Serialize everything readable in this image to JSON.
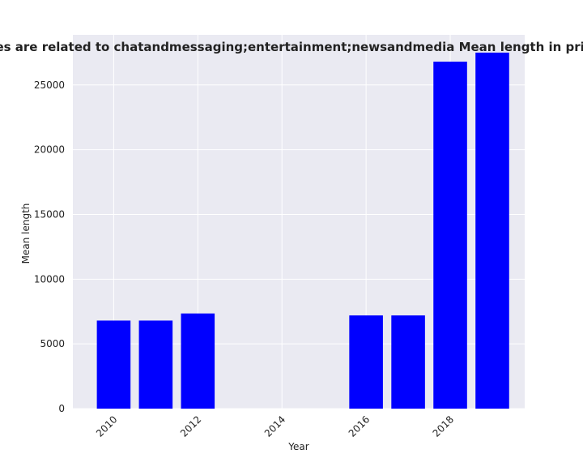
{
  "chart_data": {
    "type": "bar",
    "title": "Categories are related to chatandmessaging;entertainment;newsandmedia Mean length in privacy policy",
    "xlabel": "Year",
    "ylabel": "Mean length",
    "x": [
      2010,
      2011,
      2012,
      2016,
      2017,
      2018,
      2019
    ],
    "values": [
      6800,
      6800,
      7350,
      7200,
      7200,
      26800,
      27500
    ],
    "xlim": [
      2009.03,
      2019.77
    ],
    "ylim": [
      0,
      28870
    ],
    "xticks": [
      2010,
      2012,
      2014,
      2016,
      2018
    ],
    "yticks": [
      0,
      5000,
      10000,
      15000,
      20000,
      25000
    ],
    "bar_color": "#0000ff",
    "background": "#eaeaf2",
    "grid_color": "#ffffff",
    "grid": true
  }
}
